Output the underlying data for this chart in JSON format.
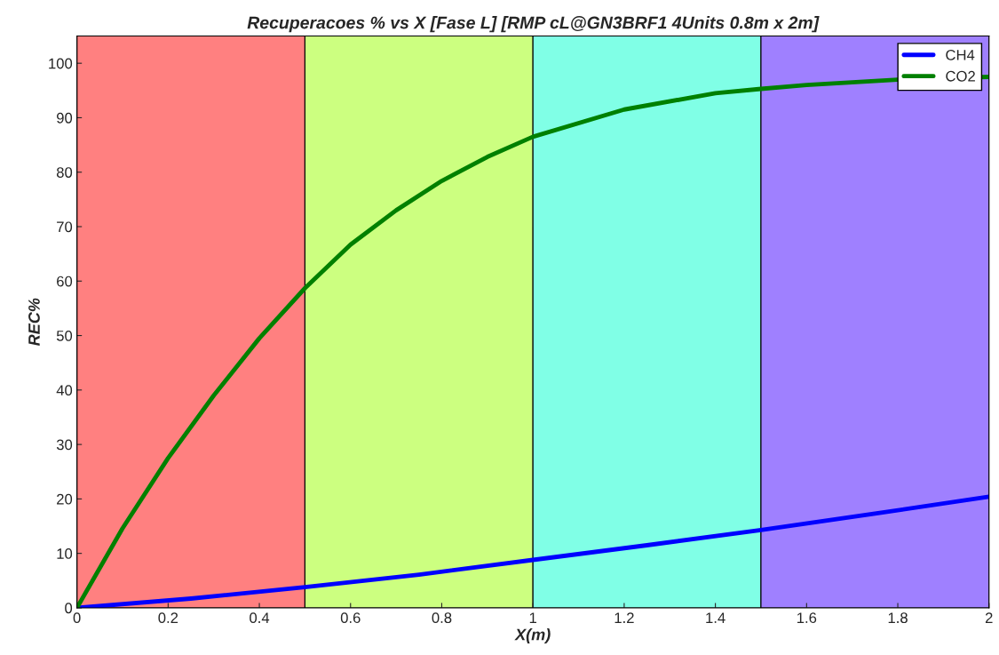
{
  "chart_data": {
    "type": "line",
    "title": "Recuperacoes % vs X [Fase L] [RMP cL@GN3BRF1 4Units 0.8m x 2m]",
    "xlabel": "X(m)",
    "ylabel": "REC%",
    "xlim": [
      0,
      2
    ],
    "ylim": [
      0,
      105
    ],
    "xticks": [
      0,
      0.2,
      0.4,
      0.6,
      0.8,
      1,
      1.2,
      1.4,
      1.6,
      1.8,
      2
    ],
    "yticks": [
      0,
      10,
      20,
      30,
      40,
      50,
      60,
      70,
      80,
      90,
      100
    ],
    "grid": false,
    "legend": "top right",
    "marker": "none",
    "line_style": "solid",
    "bands": [
      {
        "axis": "x",
        "from": 0,
        "to": 0.5,
        "color": "#ff8080"
      },
      {
        "axis": "x",
        "from": 0.5,
        "to": 1,
        "color": "#ccff80"
      },
      {
        "axis": "x",
        "from": 1,
        "to": 1.5,
        "color": "#80ffe6"
      },
      {
        "axis": "x",
        "from": 1.5,
        "to": 2,
        "color": "#9f80ff"
      }
    ],
    "series": [
      {
        "name": "CH4",
        "color": "#0000ff",
        "x": [
          0,
          0.25,
          0.5,
          0.75,
          1,
          1.25,
          1.5,
          1.75,
          2
        ],
        "values": [
          0,
          1.7,
          3.8,
          6.1,
          8.8,
          11.5,
          14.3,
          17.3,
          20.4
        ]
      },
      {
        "name": "CO2",
        "color": "#008000",
        "x": [
          0,
          0.1,
          0.2,
          0.3,
          0.4,
          0.5,
          0.6,
          0.7,
          0.8,
          0.9,
          1,
          1.2,
          1.4,
          1.5,
          1.6,
          1.8,
          2
        ],
        "values": [
          0,
          14.6,
          27.5,
          39,
          49.5,
          58.7,
          66.7,
          73,
          78.4,
          82.8,
          86.5,
          91.5,
          94.5,
          95.3,
          96,
          97,
          97.5
        ]
      }
    ]
  }
}
